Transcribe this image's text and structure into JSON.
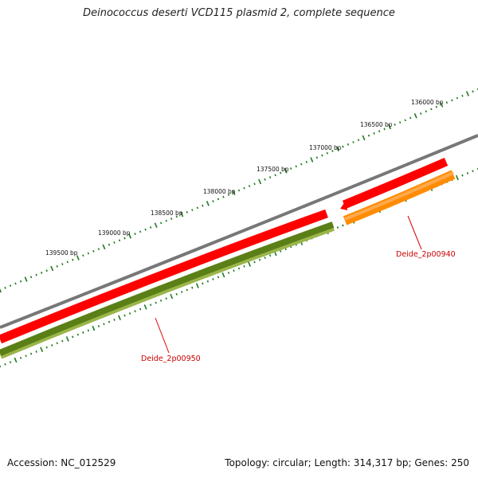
{
  "title": "Deinococcus deserti VCD115 plasmid 2, complete sequence",
  "accession": "Accession: NC_012529",
  "summary": "Topology: circular; Length: 314,317 bp; Genes: 250",
  "colors": {
    "backbone": "#777777",
    "cds_forward": "#ff0000",
    "gene_dark": "#5b7f17",
    "gene_light": "#9ab54a",
    "cds_reverse": "#ff8c00",
    "tick": "#1f7a1f",
    "gene_label_text": "#cc0000",
    "gene_label_line": "#dd0000"
  },
  "bp_labels": [
    {
      "label": "136000 bp",
      "value": 136000
    },
    {
      "label": "136500 bp",
      "value": 136500
    },
    {
      "label": "137000 bp",
      "value": 137000
    },
    {
      "label": "137500 bp",
      "value": 137500
    },
    {
      "label": "138000 bp",
      "value": 138000
    },
    {
      "label": "138500 bp",
      "value": 138500
    },
    {
      "label": "139000 bp",
      "value": 139000
    },
    {
      "label": "139500 bp",
      "value": 139500
    }
  ],
  "genes": [
    {
      "name": "Deide_2p00940",
      "strand": "reverse",
      "feature": "CDS"
    },
    {
      "name": "Deide_2p00950",
      "strand": "forward",
      "feature": "CDS"
    }
  ]
}
